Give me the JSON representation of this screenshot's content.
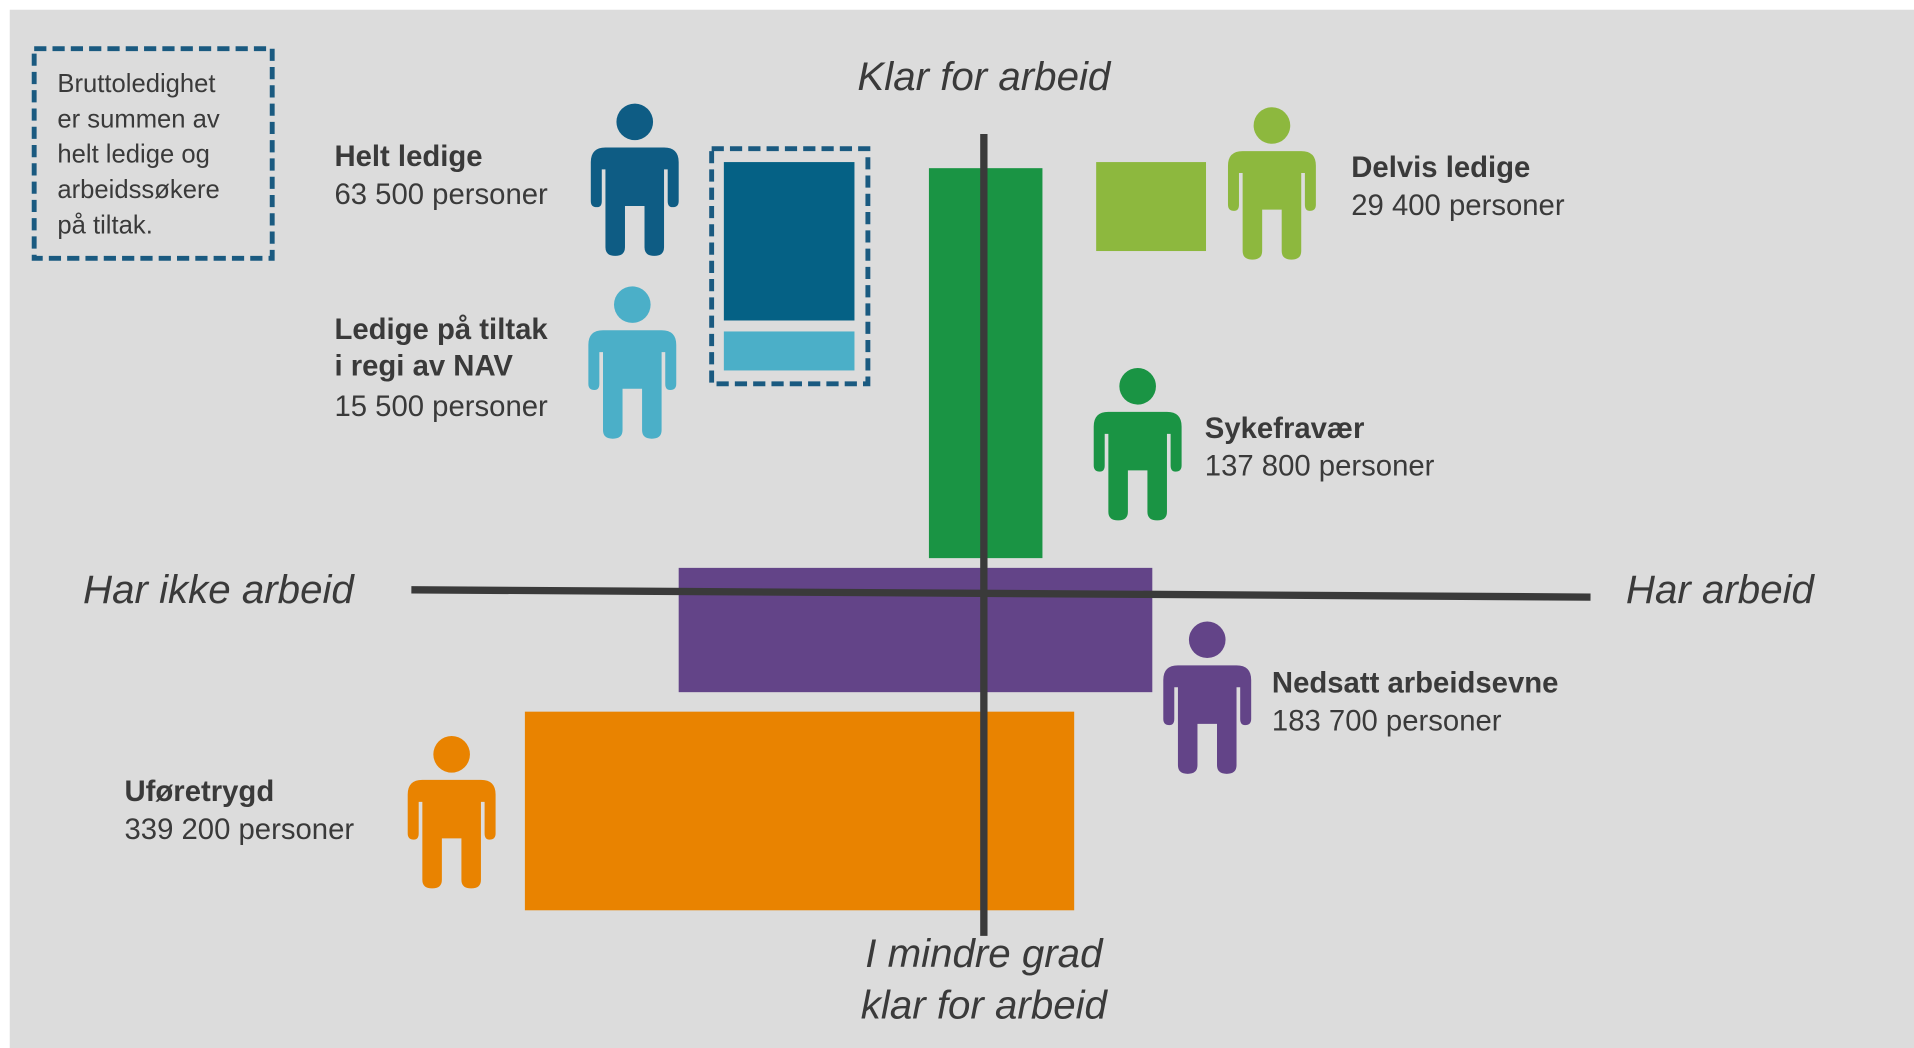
{
  "note": {
    "lines": [
      "Bruttoledighet",
      "er summen av",
      "helt ledige og",
      "arbeidssøkere",
      "på tiltak."
    ]
  },
  "axes": {
    "top": "Klar for arbeid",
    "left": "Har ikke arbeid",
    "right": "Har arbeid",
    "bottom": [
      "I mindre grad",
      "klar for arbeid"
    ]
  },
  "groups": [
    {
      "name": [
        "Helt ledige"
      ],
      "count": "63 500 personer"
    },
    {
      "name": [
        "Ledige på tiltak",
        "i regi av NAV"
      ],
      "count": "15 500 personer"
    },
    {
      "name": [
        "Delvis ledige"
      ],
      "count": "29 400 personer"
    },
    {
      "name": [
        "Sykefravær"
      ],
      "count": "137 800 personer"
    },
    {
      "name": [
        "Nedsatt arbeidsevne"
      ],
      "count": "183 700 personer"
    },
    {
      "name": [
        "Uføretrygd"
      ],
      "count": "339 200 personer"
    }
  ]
}
